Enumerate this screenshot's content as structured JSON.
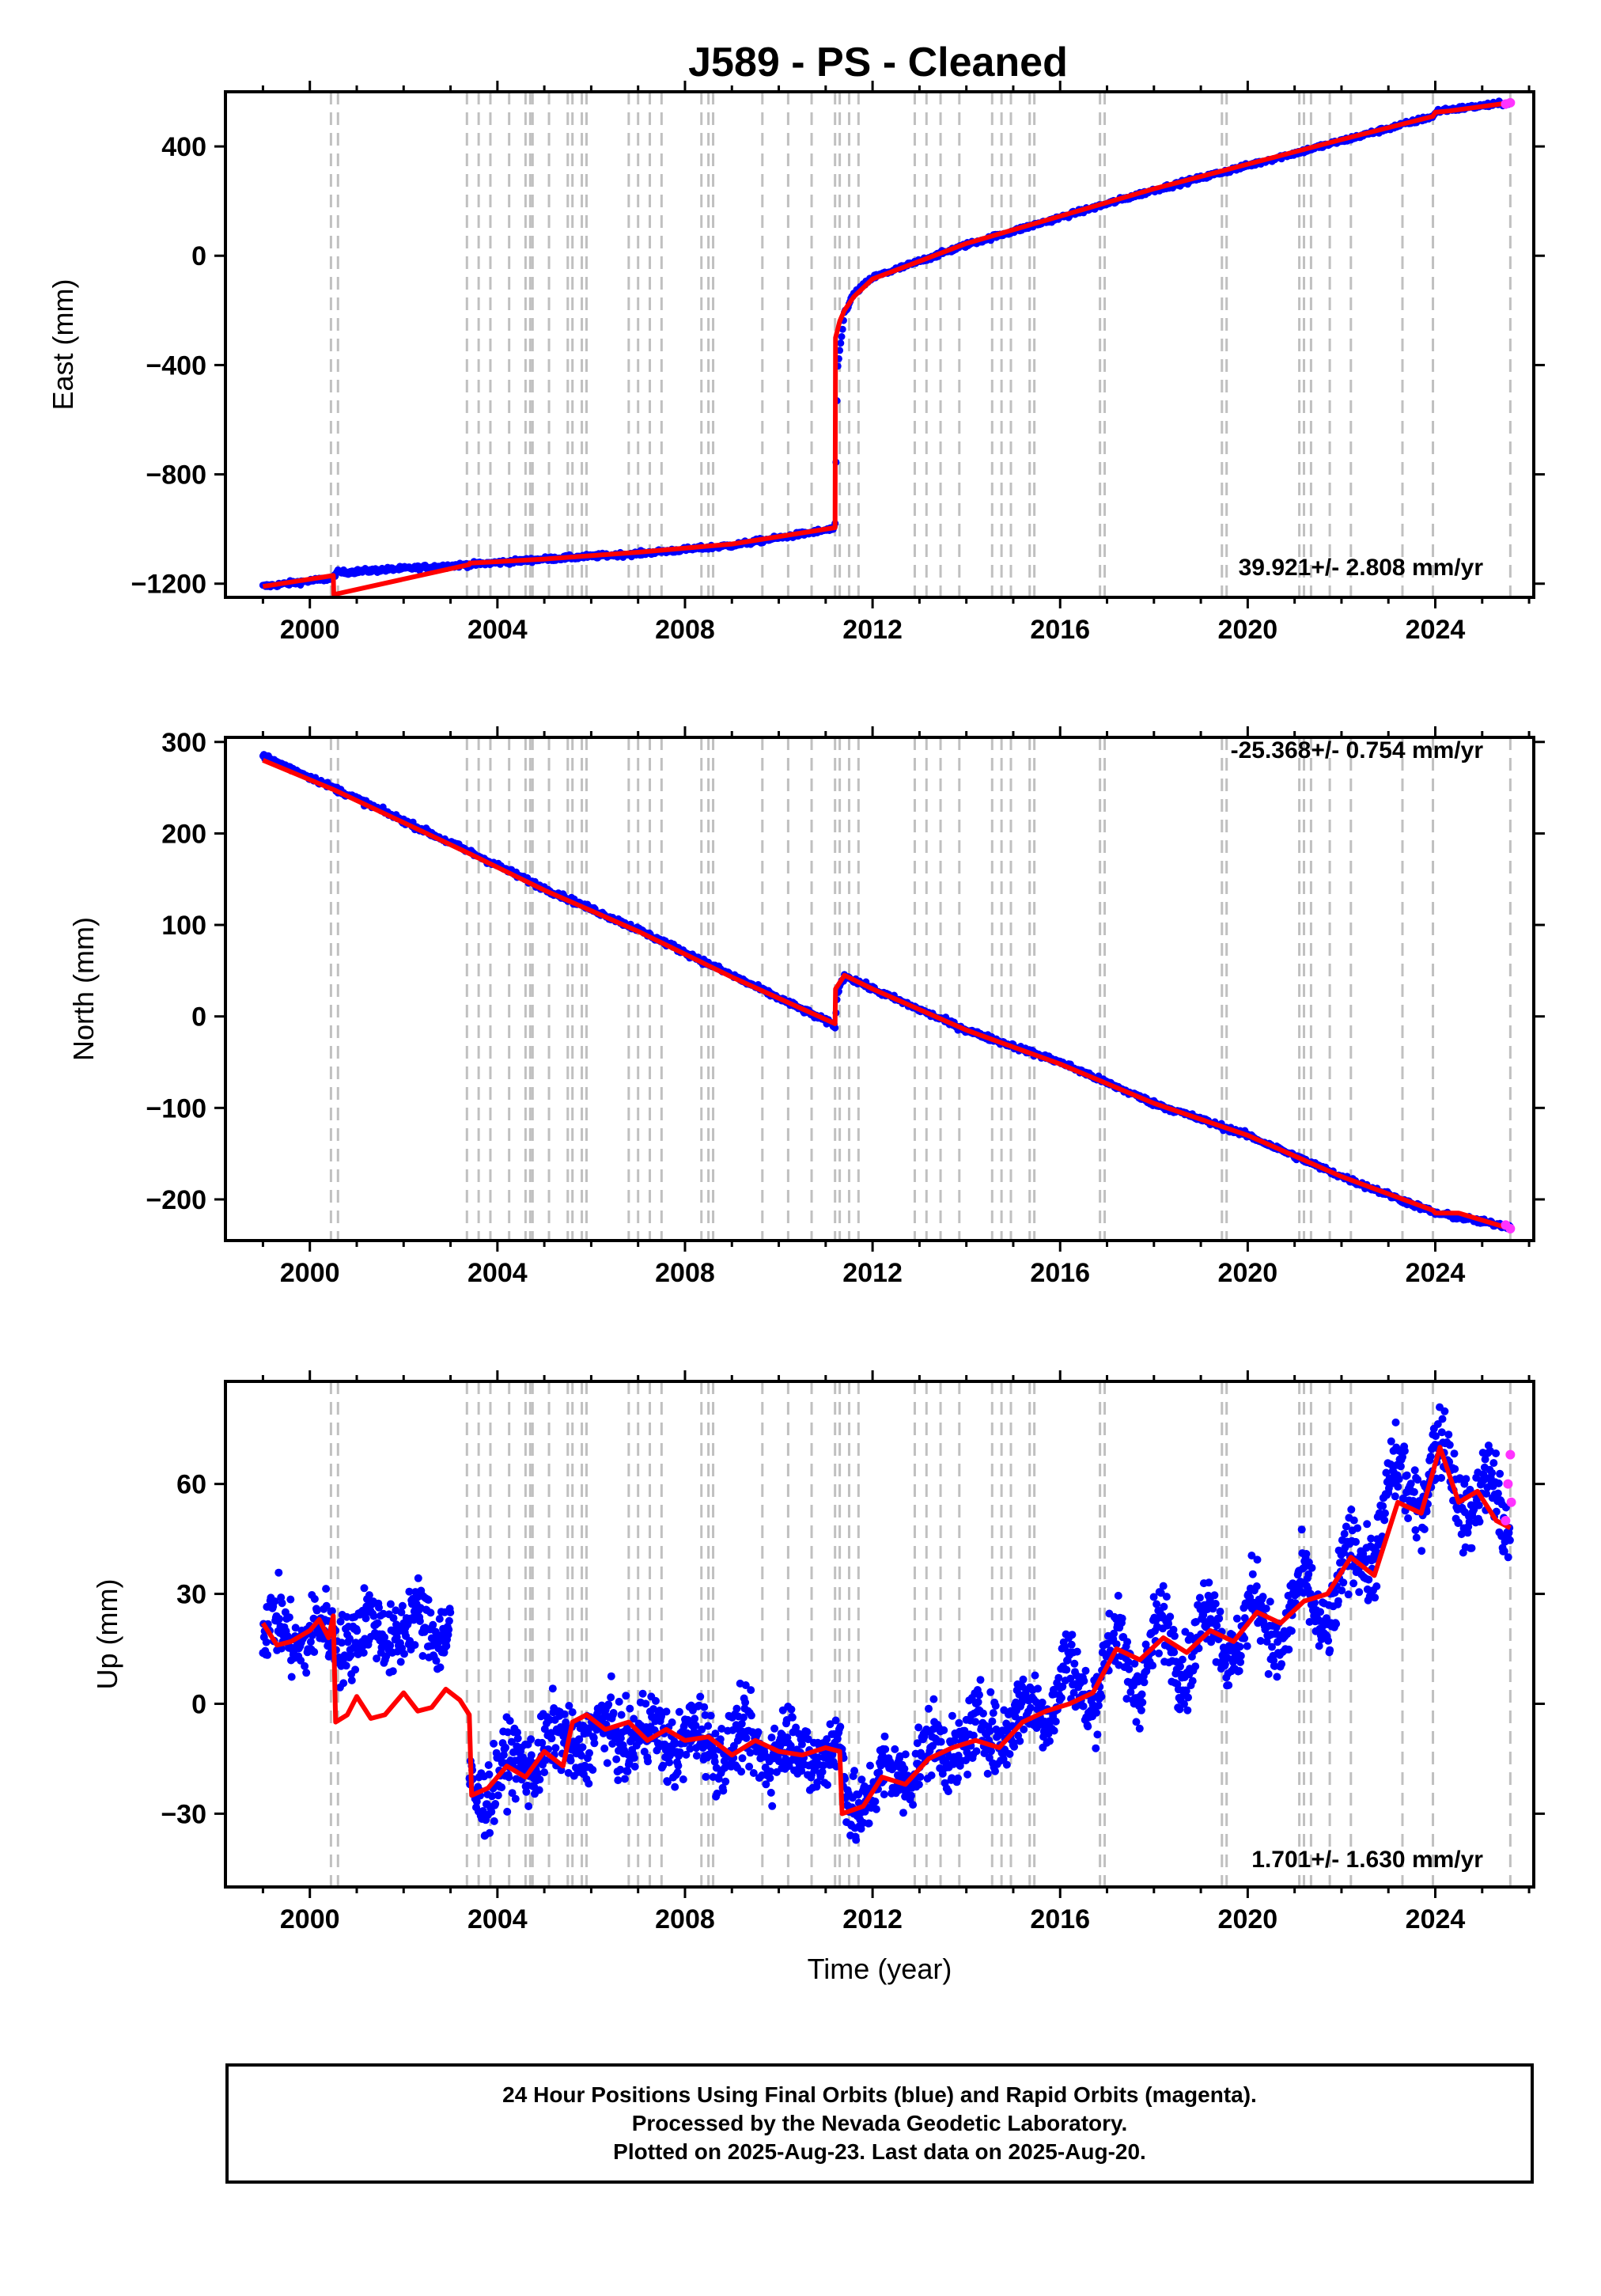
{
  "title": "J589  - PS - Cleaned",
  "colors": {
    "final": "#0000ff",
    "rapid": "#ff33ff",
    "model": "#ff0000",
    "event": "#c0c0c0",
    "frame": "#000000"
  },
  "events": [
    2000.45,
    2000.6,
    2003.35,
    2003.6,
    2003.85,
    2004.25,
    2004.6,
    2004.7,
    2004.75,
    2005.1,
    2005.5,
    2005.6,
    2005.8,
    2005.9,
    2006.8,
    2007.0,
    2007.25,
    2007.5,
    2008.35,
    2008.5,
    2008.6,
    2009.65,
    2010.2,
    2010.7,
    2011.2,
    2011.3,
    2011.5,
    2011.7,
    2012.9,
    2013.15,
    2013.45,
    2013.85,
    2014.55,
    2014.75,
    2014.95,
    2015.35,
    2015.45,
    2016.85,
    2016.95,
    2019.45,
    2019.55,
    2021.1,
    2021.2,
    2021.35,
    2021.75,
    2022.2,
    2023.3,
    2023.95,
    2025.6
  ],
  "footer": {
    "line1": "24 Hour Positions Using Final Orbits (blue) and Rapid Orbits (magenta).",
    "line2": "Processed by the Nevada Geodetic Laboratory.",
    "line3": "Plotted on 2025-Aug-23. Last data on 2025-Aug-20."
  },
  "chart_data": [
    {
      "type": "scatter",
      "ylabel": "East (mm)",
      "rate_label": "39.921+/- 2.808 mm/yr",
      "xlim": [
        1998.2,
        2026.1
      ],
      "ylim": [
        -1250,
        600
      ],
      "x_ticks": [
        2000,
        2004,
        2008,
        2012,
        2016,
        2020,
        2024
      ],
      "y_ticks": [
        -1200,
        -800,
        -400,
        0,
        400
      ],
      "tick_labels_x": [
        "2000",
        "2004",
        "2008",
        "2012",
        "2016",
        "2020",
        "2024"
      ],
      "tick_labels_y": [
        "−1200",
        "−800",
        "−400",
        "0",
        "400"
      ],
      "series": [
        {
          "values_x": [
            1999.0,
            2000.5,
            2000.55,
            2003.4,
            2003.45,
            2005.0,
            2007.0,
            2009.0,
            2011.15,
            2011.2,
            2011.25,
            2011.4,
            2011.6,
            2012.0,
            2013.0,
            2014.0,
            2016.0,
            2018.0,
            2020.0,
            2022.0,
            2023.95,
            2024.05,
            2025.6
          ],
          "values_y": [
            -1210,
            -1180,
            -1160,
            -1130,
            -1130,
            -1110,
            -1090,
            -1060,
            -1000,
            -990,
            -420,
            -210,
            -140,
            -80,
            -20,
            40,
            140,
            240,
            330,
            420,
            510,
            530,
            560
          ]
        }
      ],
      "model": {
        "values_x": [
          1999.0,
          2000.5,
          2000.51,
          2003.4,
          2003.41,
          2005.0,
          2007.0,
          2009.0,
          2011.2,
          2011.21,
          2011.3,
          2011.4,
          2011.6,
          2012.0,
          2013.0,
          2014.0,
          2016.0,
          2018.0,
          2020.0,
          2022.0,
          2023.95,
          2024.0,
          2024.3,
          2025.6
        ],
        "values_y": [
          -1210,
          -1170,
          -1240,
          -1130,
          -1125,
          -1110,
          -1085,
          -1055,
          -995,
          -300,
          -240,
          -200,
          -150,
          -85,
          -20,
          45,
          145,
          245,
          335,
          425,
          510,
          525,
          530,
          560
        ]
      },
      "rapid": {
        "values_x": [
          2025.5,
          2025.6
        ],
        "values_y": [
          555,
          560
        ]
      }
    },
    {
      "type": "scatter",
      "ylabel": "North (mm)",
      "rate_label": "-25.368+/- 0.754 mm/yr",
      "xlim": [
        1998.2,
        2026.1
      ],
      "ylim": [
        -245,
        305
      ],
      "x_ticks": [
        2000,
        2004,
        2008,
        2012,
        2016,
        2020,
        2024
      ],
      "y_ticks": [
        -200,
        -100,
        0,
        100,
        200,
        300
      ],
      "tick_labels_x": [
        "2000",
        "2004",
        "2008",
        "2012",
        "2016",
        "2020",
        "2024"
      ],
      "tick_labels_y": [
        "−200",
        "−100",
        "0",
        "100",
        "200",
        "300"
      ],
      "series": [
        {
          "values_x": [
            1999.0,
            2000.5,
            2003.4,
            2005.0,
            2007.0,
            2009.0,
            2011.2,
            2011.25,
            2011.4,
            2012.0,
            2014.0,
            2016.0,
            2018.0,
            2020.0,
            2022.0,
            2024.0,
            2025.6
          ],
          "values_y": [
            285,
            250,
            180,
            140,
            95,
            45,
            -10,
            25,
            45,
            30,
            -15,
            -50,
            -95,
            -130,
            -175,
            -215,
            -230
          ]
        }
      ],
      "model": {
        "values_x": [
          1999.0,
          2000.5,
          2003.4,
          2005.0,
          2007.0,
          2009.0,
          2011.2,
          2011.21,
          2011.4,
          2012.0,
          2014.0,
          2016.0,
          2018.0,
          2020.0,
          2022.0,
          2023.95,
          2024.0,
          2024.5,
          2025.6
        ],
        "values_y": [
          280,
          248,
          178,
          138,
          93,
          43,
          -8,
          30,
          45,
          30,
          -15,
          -52,
          -95,
          -130,
          -175,
          -212,
          -215,
          -215,
          -232
        ]
      },
      "rapid": {
        "values_x": [
          2025.5,
          2025.6
        ],
        "values_y": [
          -228,
          -232
        ]
      }
    },
    {
      "type": "scatter",
      "ylabel": "Up (mm)",
      "xlabel": "Time (year)",
      "rate_label": "1.701+/- 1.630 mm/yr",
      "xlim": [
        1998.2,
        2026.1
      ],
      "ylim": [
        -50,
        88
      ],
      "x_ticks": [
        2000,
        2004,
        2008,
        2012,
        2016,
        2020,
        2024
      ],
      "y_ticks": [
        -30,
        0,
        30,
        60
      ],
      "tick_labels_x": [
        "2000",
        "2004",
        "2008",
        "2012",
        "2016",
        "2020",
        "2024"
      ],
      "tick_labels_y": [
        "−30",
        "0",
        "30",
        "60"
      ],
      "series": [
        {
          "values_x": [
            1999.0,
            2000.5,
            2001.5,
            2003.0,
            2003.45,
            2005.0,
            2006.5,
            2008.0,
            2010.0,
            2011.3,
            2011.5,
            2013.0,
            2015.0,
            2017.0,
            2019.0,
            2020.5,
            2022.0,
            2023.0,
            2024.0,
            2025.6
          ],
          "values_y": [
            20,
            18,
            20,
            22,
            -25,
            -12,
            -8,
            -10,
            -12,
            -14,
            -28,
            -15,
            -5,
            10,
            18,
            22,
            30,
            55,
            65,
            50
          ]
        }
      ],
      "model": {
        "values_x": [
          1999.0,
          1999.3,
          1999.6,
          2000.0,
          2000.2,
          2000.4,
          2000.5,
          2000.55,
          2000.8,
          2001.0,
          2001.3,
          2001.6,
          2002.0,
          2002.3,
          2002.6,
          2002.9,
          2003.2,
          2003.4,
          2003.45,
          2003.8,
          2004.2,
          2004.6,
          2005.0,
          2005.4,
          2005.6,
          2005.9,
          2006.3,
          2006.8,
          2007.2,
          2007.6,
          2008.0,
          2008.5,
          2009.0,
          2009.5,
          2010.0,
          2010.5,
          2011.0,
          2011.3,
          2011.35,
          2011.8,
          2012.2,
          2012.7,
          2013.2,
          2013.7,
          2014.2,
          2014.7,
          2015.2,
          2015.7,
          2016.2,
          2016.7,
          2017.2,
          2017.7,
          2018.2,
          2018.7,
          2019.2,
          2019.7,
          2020.2,
          2020.7,
          2021.2,
          2021.7,
          2022.2,
          2022.7,
          2023.2,
          2023.7,
          2024.1,
          2024.5,
          2024.9,
          2025.3,
          2025.6
        ],
        "values_y": [
          22,
          16,
          17,
          20,
          23,
          18,
          24,
          -5,
          -3,
          2,
          -4,
          -3,
          3,
          -2,
          -1,
          4,
          1,
          -3,
          -25,
          -23,
          -17,
          -20,
          -13,
          -17,
          -5,
          -3,
          -7,
          -5,
          -10,
          -7,
          -10,
          -9,
          -14,
          -10,
          -13,
          -14,
          -12,
          -13,
          -30,
          -28,
          -20,
          -22,
          -15,
          -12,
          -10,
          -12,
          -5,
          -2,
          0,
          3,
          15,
          12,
          18,
          14,
          20,
          17,
          25,
          22,
          28,
          30,
          40,
          35,
          55,
          52,
          70,
          55,
          58,
          50,
          48
        ]
      },
      "rapid": {
        "values_x": [
          2025.5,
          2025.55,
          2025.6,
          2025.62
        ],
        "values_y": [
          50,
          60,
          68,
          55
        ]
      }
    }
  ]
}
